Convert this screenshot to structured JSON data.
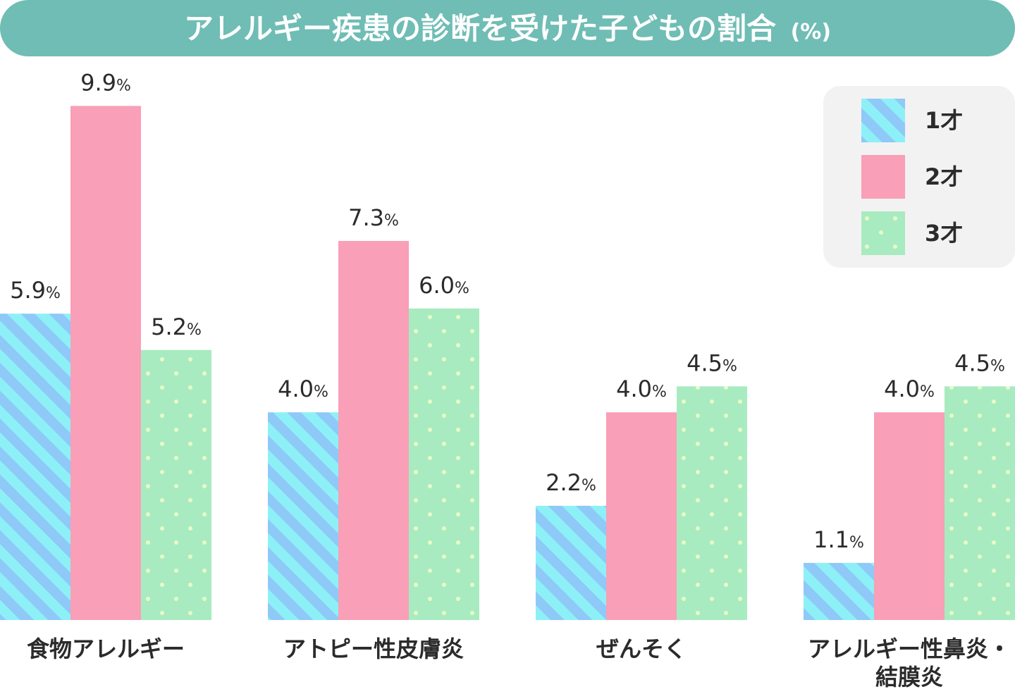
{
  "colors": {
    "title_bg": "#6fbdb5",
    "legend_bg": "#f3f2f2",
    "series_1": "#8ec9f7",
    "series_1_stripe": "#8ef0f7",
    "series_2": "#f99fb7",
    "series_3": "#a8ebc0",
    "series_3_dot": "#e8fbc8",
    "text": "#2b2b2b"
  },
  "chart_data": {
    "type": "bar",
    "title": "アレルギー疾患の診断を受けた子どもの割合",
    "title_unit": "(%)",
    "xlabel": "",
    "ylabel": "",
    "ylim": [
      0,
      10
    ],
    "grid": false,
    "legend_position": "top-right",
    "value_suffix": "%",
    "categories": [
      [
        "食物アレルギー"
      ],
      [
        "アトピー性皮膚炎"
      ],
      [
        "ぜんそく"
      ],
      [
        "アレルギー性鼻炎・",
        "結膜炎"
      ]
    ],
    "series": [
      {
        "name": "1才",
        "pattern": "stripes",
        "values": [
          5.9,
          4.0,
          2.2,
          1.1
        ]
      },
      {
        "name": "2才",
        "pattern": "solid",
        "values": [
          9.9,
          7.3,
          4.0,
          4.0
        ]
      },
      {
        "name": "3才",
        "pattern": "dots",
        "values": [
          5.2,
          6.0,
          4.5,
          4.5
        ]
      }
    ]
  }
}
